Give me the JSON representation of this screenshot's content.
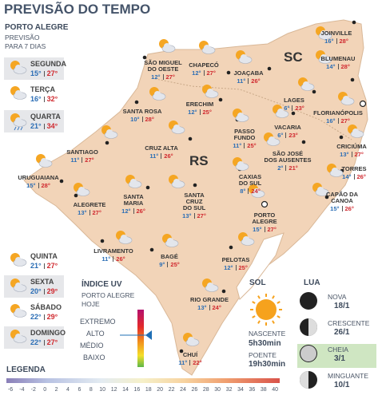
{
  "header": {
    "title": "PREVISÃO DO TEMPO"
  },
  "forecast": {
    "location": "PORTO ALEGRE",
    "subtitle": [
      "PREVISÃO",
      "PARA 7 DIAS"
    ],
    "days": [
      {
        "name": "SEGUNDA",
        "min": "15°",
        "max": "27°"
      },
      {
        "name": "TERÇA",
        "min": "16°",
        "max": "32°"
      },
      {
        "name": "QUARTA",
        "min": "21°",
        "max": "34°"
      },
      {
        "name": "QUINTA",
        "min": "21°",
        "max": "27°"
      },
      {
        "name": "SEXTA",
        "min": "20°",
        "max": "29°"
      },
      {
        "name": "SÁBADO",
        "min": "22°",
        "max": "29°"
      },
      {
        "name": "DOMINGO",
        "min": "22°",
        "max": "27°"
      }
    ]
  },
  "map": {
    "states": [
      "SC",
      "RS"
    ],
    "cities": [
      {
        "name": [
          "SÃO MIGUEL",
          "DO OESTE"
        ],
        "min": "12°",
        "max": "27°"
      },
      {
        "name": [
          "CHAPECÓ"
        ],
        "min": "12°",
        "max": "27°"
      },
      {
        "name": [
          "JOAÇABA"
        ],
        "min": "11°",
        "max": "26°"
      },
      {
        "name": [
          "JOINVILLE"
        ],
        "min": "16°",
        "max": "28°"
      },
      {
        "name": [
          "BLUMENAU"
        ],
        "min": "14°",
        "max": "28°"
      },
      {
        "name": [
          "LAGES"
        ],
        "min": "6°",
        "max": "23°"
      },
      {
        "name": [
          "FLORIANÓPOLIS"
        ],
        "min": "16°",
        "max": "27°"
      },
      {
        "name": [
          "SANTA ROSA"
        ],
        "min": "10°",
        "max": "28°"
      },
      {
        "name": [
          "ERECHIM"
        ],
        "min": "12°",
        "max": "25°"
      },
      {
        "name": [
          "PASSO",
          "FUNDO"
        ],
        "min": "11°",
        "max": "25°"
      },
      {
        "name": [
          "VACARIA"
        ],
        "min": "6°",
        "max": "23°"
      },
      {
        "name": [
          "SÃO JOSÉ",
          "DOS AUSENTES"
        ],
        "min": "2°",
        "max": "21°"
      },
      {
        "name": [
          "CRICIÚMA"
        ],
        "min": "13°",
        "max": "27°"
      },
      {
        "name": [
          "TORRES"
        ],
        "min": "14°",
        "max": "26°"
      },
      {
        "name": [
          "SANTIAGO"
        ],
        "min": "11°",
        "max": "27°"
      },
      {
        "name": [
          "CRUZ ALTA"
        ],
        "min": "11°",
        "max": "26°"
      },
      {
        "name": [
          "URUGUAIANA"
        ],
        "min": "15°",
        "max": "28°"
      },
      {
        "name": [
          "CAXIAS",
          "DO SUL"
        ],
        "min": "8°",
        "max": "24°"
      },
      {
        "name": [
          "CAPÃO DA",
          "CANOA"
        ],
        "min": "15°",
        "max": "26°"
      },
      {
        "name": [
          "ALEGRETE"
        ],
        "min": "13°",
        "max": "27°"
      },
      {
        "name": [
          "SANTA",
          "MARIA"
        ],
        "min": "12°",
        "max": "26°"
      },
      {
        "name": [
          "SANTA",
          "CRUZ",
          "DO SUL"
        ],
        "min": "13°",
        "max": "27°"
      },
      {
        "name": [
          "PORTO",
          "ALEGRE"
        ],
        "min": "15°",
        "max": "27°"
      },
      {
        "name": [
          "LIVRAMENTO"
        ],
        "min": "11°",
        "max": "26°"
      },
      {
        "name": [
          "BAGÉ"
        ],
        "min": "9°",
        "max": "25°"
      },
      {
        "name": [
          "PELOTAS"
        ],
        "min": "12°",
        "max": "25°"
      },
      {
        "name": [
          "RIO GRANDE"
        ],
        "min": "13°",
        "max": "24°"
      },
      {
        "name": [
          "CHUÍ"
        ],
        "min": "11°",
        "max": "22°"
      }
    ]
  },
  "uv": {
    "title": "ÍNDICE UV",
    "subtitle": [
      "PORTO ALEGRE",
      "HOJE"
    ],
    "levels": [
      "EXTREMO",
      "ALTO",
      "MÉDIO",
      "BAIXO"
    ]
  },
  "sun": {
    "title": "SOL",
    "sunrise_label": "NASCENTE",
    "sunrise": "5h30min",
    "sunset_label": "POENTE",
    "sunset": "19h30min"
  },
  "moon": {
    "title": "LUA",
    "phases": [
      {
        "name": "NOVA",
        "date": "18/1"
      },
      {
        "name": "CRESCENTE",
        "date": "26/1"
      },
      {
        "name": "CHEIA",
        "date": "3/1"
      },
      {
        "name": "MINGUANTE",
        "date": "10/1"
      }
    ]
  },
  "legend": {
    "title": "LEGENDA",
    "ticks": [
      -6,
      -4,
      -2,
      0,
      2,
      4,
      6,
      8,
      10,
      12,
      14,
      16,
      18,
      20,
      22,
      24,
      26,
      28,
      30,
      32,
      34,
      36,
      38,
      40
    ]
  }
}
